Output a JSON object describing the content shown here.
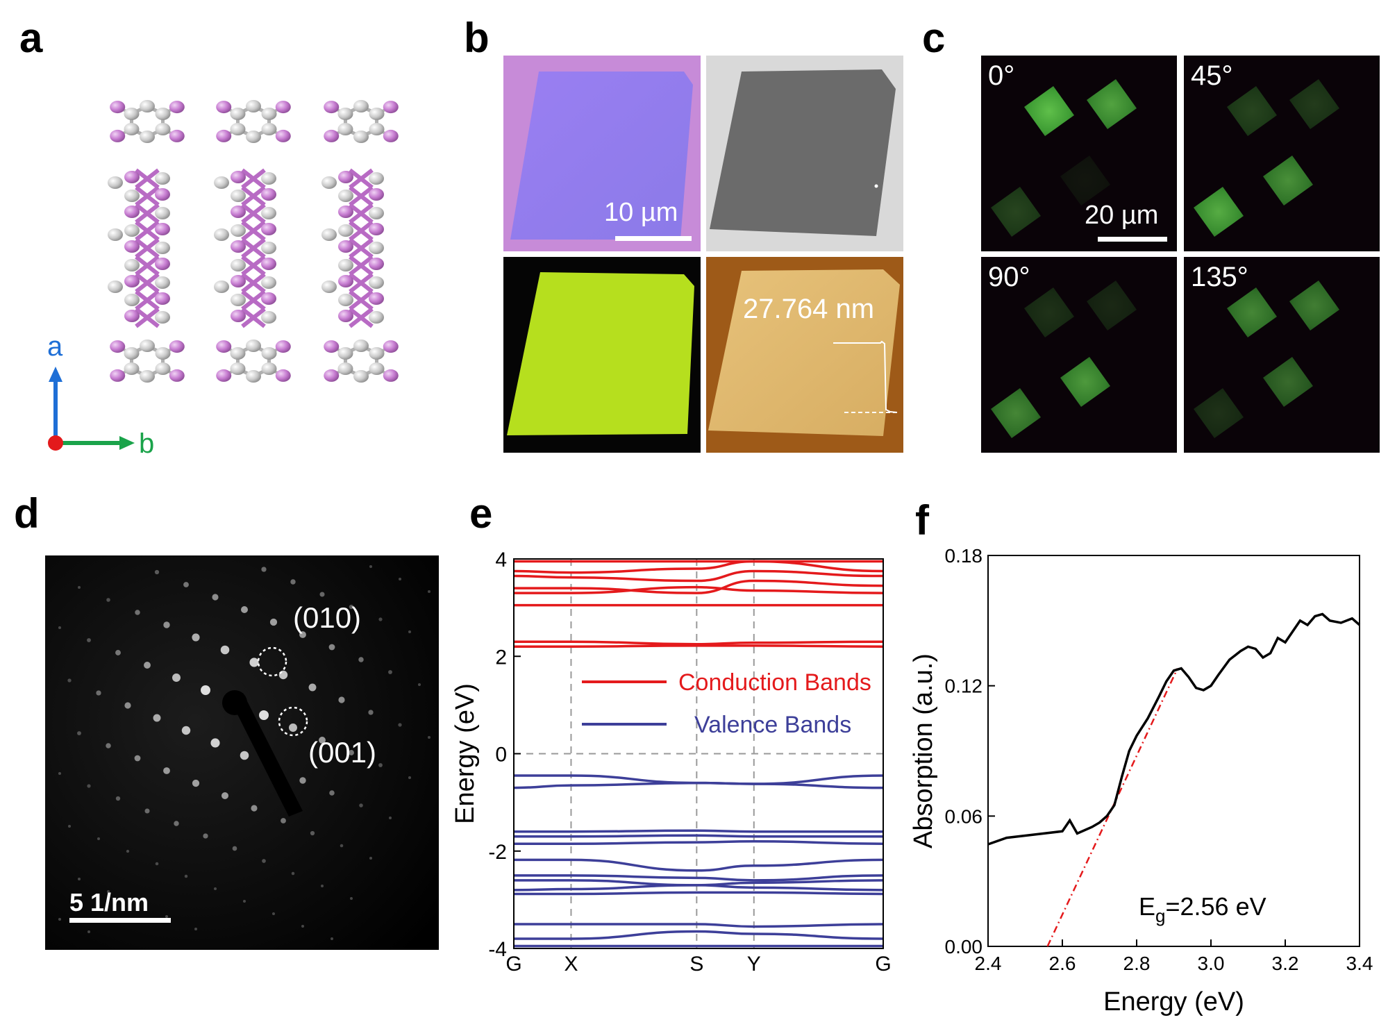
{
  "panels": {
    "a": {
      "label": "a",
      "axis_a": "a",
      "axis_b": "b"
    },
    "b": {
      "label": "b",
      "scalebar": "10 µm",
      "afm_height": "27.764 nm"
    },
    "c": {
      "label": "c",
      "angles": [
        "0°",
        "45°",
        "90°",
        "135°"
      ],
      "scalebar": "20 µm"
    },
    "d": {
      "label": "d",
      "spot1": "(010)",
      "spot2": "(001)",
      "scalebar": "5 1/nm"
    },
    "e": {
      "label": "e"
    },
    "f": {
      "label": "f"
    }
  },
  "colors": {
    "conduction": "#e41a1c",
    "valence": "#3d3f99",
    "atom_i": "#c77dd1",
    "atom_c": "#bfbfbf",
    "axis_a": "#1f6fd6",
    "axis_b": "#1aa34a"
  },
  "chart_data": [
    {
      "type": "line",
      "title": "",
      "xlabel": "",
      "ylabel": "Energy (eV)",
      "ylim": [
        -4,
        4
      ],
      "yticks": [
        "4",
        "2",
        "0",
        "-2",
        "-4"
      ],
      "kpoints": [
        "G",
        "X",
        "S",
        "Y",
        "G"
      ],
      "kpos": [
        0,
        0.155,
        0.495,
        0.65,
        1
      ],
      "legend": [
        "Conduction Bands",
        "Valence Bands"
      ],
      "conduction_bands": [
        [
          3.95,
          3.95,
          3.95,
          3.95,
          3.95
        ],
        [
          3.75,
          3.72,
          3.8,
          3.95,
          3.75
        ],
        [
          3.65,
          3.62,
          3.55,
          3.75,
          3.65
        ],
        [
          3.4,
          3.4,
          3.3,
          3.55,
          3.45
        ],
        [
          3.3,
          3.3,
          3.42,
          3.35,
          3.3
        ],
        [
          3.05,
          3.05,
          3.05,
          3.05,
          3.05
        ],
        [
          2.3,
          2.3,
          2.25,
          2.28,
          2.3
        ],
        [
          2.2,
          2.2,
          2.22,
          2.22,
          2.2
        ]
      ],
      "valence_bands": [
        [
          -0.45,
          -0.45,
          -0.6,
          -0.62,
          -0.45
        ],
        [
          -0.7,
          -0.65,
          -0.6,
          -0.62,
          -0.7
        ],
        [
          -1.6,
          -1.6,
          -1.58,
          -1.6,
          -1.6
        ],
        [
          -1.7,
          -1.7,
          -1.68,
          -1.7,
          -1.7
        ],
        [
          -1.85,
          -1.85,
          -1.82,
          -1.8,
          -1.85
        ],
        [
          -2.18,
          -2.18,
          -2.4,
          -2.3,
          -2.18
        ],
        [
          -2.5,
          -2.5,
          -2.55,
          -2.6,
          -2.5
        ],
        [
          -2.6,
          -2.6,
          -2.7,
          -2.65,
          -2.6
        ],
        [
          -2.8,
          -2.78,
          -2.7,
          -2.75,
          -2.8
        ],
        [
          -2.88,
          -2.88,
          -2.85,
          -2.85,
          -2.88
        ],
        [
          -3.5,
          -3.5,
          -3.5,
          -3.55,
          -3.5
        ],
        [
          -3.8,
          -3.8,
          -3.65,
          -3.7,
          -3.8
        ],
        [
          -3.95,
          -3.95,
          -3.95,
          -3.95,
          -3.95
        ]
      ]
    },
    {
      "type": "line",
      "title": "",
      "xlabel": "Energy (eV)",
      "ylabel": "Absorption (a.u.)",
      "xlim": [
        2.4,
        3.4
      ],
      "ylim": [
        0.0,
        0.18
      ],
      "xticks": [
        "2.4",
        "2.6",
        "2.8",
        "3.0",
        "3.2",
        "3.4"
      ],
      "yticks": [
        "0.00",
        "0.06",
        "0.12",
        "0.18"
      ],
      "x": [
        2.4,
        2.45,
        2.5,
        2.55,
        2.6,
        2.62,
        2.64,
        2.68,
        2.7,
        2.72,
        2.74,
        2.76,
        2.78,
        2.8,
        2.83,
        2.86,
        2.88,
        2.9,
        2.92,
        2.94,
        2.96,
        2.98,
        3.0,
        3.02,
        3.05,
        3.08,
        3.1,
        3.12,
        3.14,
        3.16,
        3.18,
        3.2,
        3.22,
        3.24,
        3.26,
        3.28,
        3.3,
        3.32,
        3.35,
        3.38,
        3.4
      ],
      "y": [
        0.047,
        0.05,
        0.051,
        0.052,
        0.053,
        0.058,
        0.052,
        0.055,
        0.057,
        0.06,
        0.065,
        0.078,
        0.09,
        0.097,
        0.105,
        0.115,
        0.122,
        0.127,
        0.128,
        0.124,
        0.119,
        0.118,
        0.12,
        0.125,
        0.132,
        0.136,
        0.138,
        0.137,
        0.133,
        0.135,
        0.142,
        0.14,
        0.145,
        0.15,
        0.148,
        0.152,
        0.153,
        0.15,
        0.149,
        0.151,
        0.148
      ],
      "fit_line": {
        "x": [
          2.56,
          2.91
        ],
        "y": [
          0.0,
          0.128
        ]
      },
      "annotation": {
        "prefix": "E",
        "sub": "g",
        "text": "=2.56 eV"
      }
    }
  ]
}
